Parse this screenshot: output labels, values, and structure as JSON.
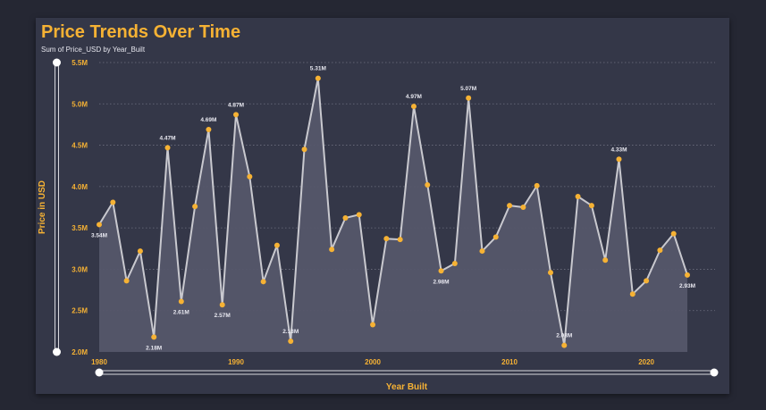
{
  "title": "Price Trends Over Time",
  "subtitle": "Sum of Price_USD by Year_Built",
  "colors": {
    "background": "#252733",
    "card": "#343748",
    "accent": "#f6b234",
    "line": "#c9c9cf",
    "area": "#55566a",
    "grid": "#6e7080"
  },
  "chart_data": {
    "type": "area",
    "title": "Price Trends Over Time",
    "subtitle": "Sum of Price_USD by Year_Built",
    "xlabel": "Year Built",
    "ylabel": "Price in USD",
    "xlim": [
      1980,
      2023
    ],
    "ylim": [
      2.0,
      5.5
    ],
    "y_unit": "M",
    "xticks": [
      1980,
      1990,
      2000,
      2010,
      2020
    ],
    "xtick_labels": [
      "1980",
      "1990",
      "2000",
      "2010",
      "2020"
    ],
    "yticks": [
      2.0,
      2.5,
      3.0,
      3.5,
      4.0,
      4.5,
      5.0,
      5.5
    ],
    "ytick_labels": [
      "2.0M",
      "2.5M",
      "3.0M",
      "3.5M",
      "4.0M",
      "4.5M",
      "5.0M",
      "5.5M"
    ],
    "grid": true,
    "x": [
      1980,
      1981,
      1982,
      1983,
      1984,
      1985,
      1986,
      1987,
      1988,
      1989,
      1990,
      1991,
      1992,
      1993,
      1994,
      1995,
      1996,
      1997,
      1998,
      1999,
      2000,
      2001,
      2002,
      2003,
      2004,
      2005,
      2006,
      2007,
      2008,
      2009,
      2010,
      2011,
      2012,
      2013,
      2014,
      2015,
      2016,
      2017,
      2018,
      2019,
      2020,
      2021,
      2022,
      2023
    ],
    "values": [
      3.54,
      3.81,
      2.86,
      3.22,
      2.18,
      4.47,
      2.61,
      3.76,
      4.69,
      2.57,
      4.87,
      4.12,
      2.85,
      3.29,
      2.13,
      4.45,
      5.31,
      3.24,
      3.62,
      3.66,
      2.33,
      3.37,
      3.36,
      4.97,
      4.02,
      2.98,
      3.07,
      5.07,
      3.22,
      3.39,
      3.77,
      3.75,
      4.01,
      2.96,
      2.08,
      3.88,
      3.77,
      3.11,
      4.33,
      2.7,
      2.86,
      3.23,
      3.43,
      2.93
    ],
    "data_labels": [
      {
        "x": 1980,
        "text": "3.54M",
        "pos": "below"
      },
      {
        "x": 1984,
        "text": "2.18M",
        "pos": "below"
      },
      {
        "x": 1985,
        "text": "4.47M",
        "pos": "above"
      },
      {
        "x": 1986,
        "text": "2.61M",
        "pos": "below"
      },
      {
        "x": 1988,
        "text": "4.69M",
        "pos": "above"
      },
      {
        "x": 1989,
        "text": "2.57M",
        "pos": "below"
      },
      {
        "x": 1990,
        "text": "4.87M",
        "pos": "above"
      },
      {
        "x": 1994,
        "text": "2.13M",
        "pos": "above"
      },
      {
        "x": 1996,
        "text": "5.31M",
        "pos": "above"
      },
      {
        "x": 2003,
        "text": "4.97M",
        "pos": "above"
      },
      {
        "x": 2005,
        "text": "2.98M",
        "pos": "below"
      },
      {
        "x": 2007,
        "text": "5.07M",
        "pos": "above"
      },
      {
        "x": 2014,
        "text": "2.08M",
        "pos": "above"
      },
      {
        "x": 2018,
        "text": "4.33M",
        "pos": "above"
      },
      {
        "x": 2023,
        "text": "2.93M",
        "pos": "below"
      }
    ]
  }
}
